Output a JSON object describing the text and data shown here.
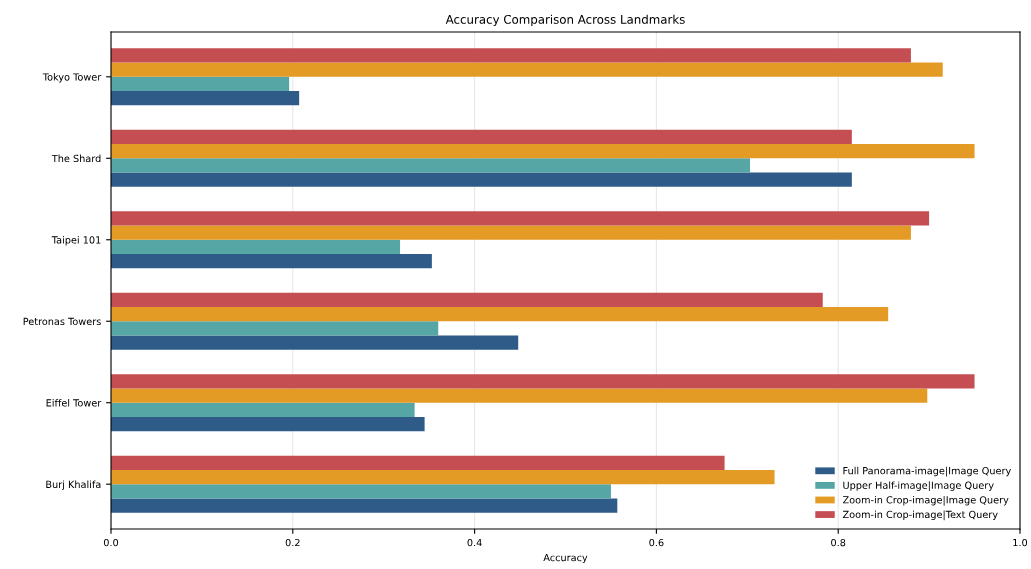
{
  "chart_data": {
    "type": "bar",
    "orientation": "horizontal",
    "title": "Accuracy Comparison Across Landmarks",
    "xlabel": "Accuracy",
    "categories": [
      "Tokyo Tower",
      "The Shard",
      "Taipei 101",
      "Petronas Towers",
      "Eiffel Tower",
      "Burj Khalifa"
    ],
    "series": [
      {
        "name": "Full Panorama-image|Image Query",
        "color": "#2e5b88",
        "values": [
          0.207,
          0.815,
          0.353,
          0.448,
          0.345,
          0.557
        ]
      },
      {
        "name": "Upper Half-image|Image Query",
        "color": "#56a6a6",
        "values": [
          0.196,
          0.703,
          0.318,
          0.36,
          0.334,
          0.55
        ]
      },
      {
        "name": "Zoom-in Crop-image|Image Query",
        "color": "#e49b25",
        "values": [
          0.915,
          0.95,
          0.88,
          0.855,
          0.898,
          0.73
        ]
      },
      {
        "name": "Zoom-in Crop-image|Text Query",
        "color": "#c44e52",
        "values": [
          0.88,
          0.815,
          0.9,
          0.783,
          0.95,
          0.675
        ]
      }
    ],
    "xlim": [
      0,
      1
    ],
    "xticks": [
      {
        "value": 0,
        "label": "0.0"
      },
      0.2,
      0.4,
      0.6,
      0.8,
      {
        "value": 1,
        "label": "1.0"
      }
    ],
    "grid": "x",
    "legend": "bottom right"
  }
}
